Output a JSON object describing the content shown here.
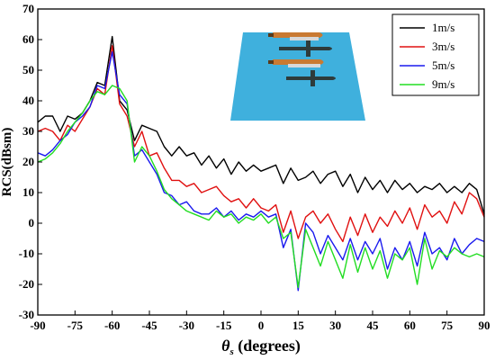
{
  "chart_data": {
    "type": "line",
    "ylabel": "RCS(dBsm)",
    "xlabel_main": "θ",
    "xlabel_sub": "s",
    "xlabel_rest": " (degrees)",
    "xlim": [
      -90,
      90
    ],
    "ylim": [
      -30,
      70
    ],
    "xticks": [
      -90,
      -75,
      -60,
      -45,
      -30,
      -15,
      0,
      15,
      30,
      45,
      60,
      75,
      90
    ],
    "yticks": [
      -30,
      -20,
      -10,
      0,
      10,
      20,
      30,
      40,
      50,
      60,
      70
    ],
    "grid": false,
    "legend_position": "top-right",
    "inset": {
      "description": "illustration of two torpedoes over sea surface",
      "water_color": "#3fb0dd"
    },
    "x": [
      -90,
      -87,
      -84,
      -81,
      -78,
      -75,
      -72,
      -69,
      -66,
      -63,
      -60,
      -57,
      -54,
      -51,
      -48,
      -45,
      -42,
      -39,
      -36,
      -33,
      -30,
      -27,
      -24,
      -21,
      -18,
      -15,
      -12,
      -9,
      -6,
      -3,
      0,
      3,
      6,
      9,
      12,
      15,
      18,
      21,
      24,
      27,
      30,
      33,
      36,
      39,
      42,
      45,
      48,
      51,
      54,
      57,
      60,
      63,
      66,
      69,
      72,
      75,
      78,
      81,
      84,
      87,
      90
    ],
    "series": [
      {
        "name": "1m/s",
        "color": "#000000",
        "values": [
          33,
          35,
          35,
          30,
          35,
          34,
          36,
          40,
          46,
          45,
          61,
          40,
          37,
          27,
          32,
          31,
          30,
          25,
          22,
          25,
          22,
          23,
          19,
          22,
          18,
          21,
          16,
          20,
          17,
          19,
          17,
          18,
          19,
          13,
          18,
          14,
          15,
          17,
          13,
          16,
          17,
          12,
          16,
          10,
          15,
          11,
          14,
          10,
          14,
          11,
          13,
          10,
          12,
          11,
          13,
          10,
          12,
          10,
          13,
          11,
          3
        ]
      },
      {
        "name": "3m/s",
        "color": "#e01010",
        "values": [
          30,
          31,
          30,
          27,
          32,
          30,
          34,
          38,
          44,
          42,
          58,
          39,
          35,
          25,
          30,
          22,
          23,
          18,
          14,
          14,
          12,
          13,
          10,
          11,
          12,
          9,
          7,
          8,
          5,
          8,
          5,
          4,
          6,
          -3,
          4,
          -5,
          2,
          4,
          0,
          3,
          -2,
          -6,
          2,
          -4,
          3,
          -3,
          2,
          -1,
          4,
          0,
          5,
          -2,
          6,
          2,
          4,
          0,
          7,
          3,
          10,
          8,
          2
        ]
      },
      {
        "name": "5m/s",
        "color": "#1a1aee",
        "values": [
          23,
          22,
          24,
          27,
          29,
          33,
          35,
          38,
          45,
          44,
          56,
          42,
          39,
          22,
          24,
          20,
          16,
          10,
          9,
          6,
          7,
          4,
          3,
          3,
          5,
          2,
          4,
          1,
          3,
          2,
          4,
          2,
          3,
          -8,
          -2,
          -22,
          0,
          -3,
          -10,
          -4,
          -8,
          -12,
          -5,
          -12,
          -6,
          -10,
          -5,
          -15,
          -8,
          -12,
          -6,
          -14,
          -3,
          -10,
          -8,
          -12,
          -5,
          -10,
          -7,
          -5,
          -6
        ]
      },
      {
        "name": "9m/s",
        "color": "#22dd22",
        "values": [
          20,
          21,
          23,
          26,
          30,
          33,
          36,
          40,
          43,
          42,
          45,
          44,
          40,
          20,
          25,
          22,
          17,
          11,
          8,
          6,
          4,
          3,
          2,
          1,
          4,
          2,
          3,
          0,
          2,
          1,
          3,
          0,
          2,
          -5,
          -3,
          -21,
          -2,
          -8,
          -14,
          -6,
          -12,
          -18,
          -7,
          -16,
          -8,
          -15,
          -9,
          -18,
          -10,
          -12,
          -8,
          -20,
          -5,
          -15,
          -9,
          -11,
          -8,
          -10,
          -11,
          -10,
          -11
        ]
      }
    ]
  }
}
